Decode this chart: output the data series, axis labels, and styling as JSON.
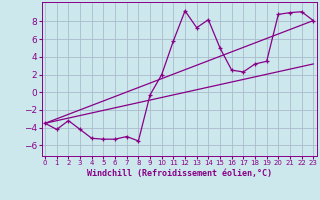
{
  "xlabel": "Windchill (Refroidissement éolien,°C)",
  "bg_color": "#cce8ec",
  "grid_color": "#aabbcc",
  "line_color": "#880088",
  "x_ticks": [
    0,
    1,
    2,
    3,
    4,
    5,
    6,
    7,
    8,
    9,
    10,
    11,
    12,
    13,
    14,
    15,
    16,
    17,
    18,
    19,
    20,
    21,
    22,
    23
  ],
  "y_ticks": [
    -6,
    -4,
    -2,
    0,
    2,
    4,
    6,
    8
  ],
  "xlim": [
    -0.3,
    23.3
  ],
  "ylim": [
    -7.2,
    10.2
  ],
  "series1_x": [
    0,
    1,
    2,
    3,
    4,
    5,
    6,
    7,
    8,
    9,
    10,
    11,
    12,
    13,
    14,
    15,
    16,
    17,
    18,
    19,
    20,
    21,
    22,
    23
  ],
  "series1_y": [
    -3.5,
    -4.2,
    -3.2,
    -4.2,
    -5.2,
    -5.3,
    -5.3,
    -5.0,
    -5.5,
    -0.3,
    2.0,
    5.8,
    9.2,
    7.3,
    8.2,
    5.0,
    2.5,
    2.3,
    3.2,
    3.5,
    8.8,
    9.0,
    9.1,
    8.1
  ],
  "series2_x": [
    0,
    23
  ],
  "series2_y": [
    -3.5,
    8.1
  ],
  "series3_x": [
    0,
    23
  ],
  "series3_y": [
    -3.5,
    3.2
  ],
  "xlabel_fontsize": 6.0,
  "tick_fontsize_x": 5.0,
  "tick_fontsize_y": 6.5
}
